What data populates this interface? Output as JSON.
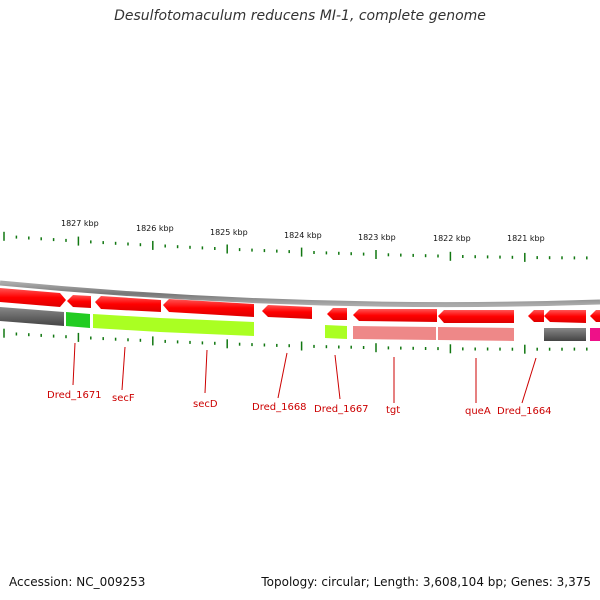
{
  "title": "Desulfotomaculum reducens MI-1, complete genome",
  "footer": {
    "accession": "Accession: NC_009253",
    "topology": "Topology: circular; Length: 3,608,104 bp; Genes: 3,375"
  },
  "scale_labels": [
    "1827 kbp",
    "1826 kbp",
    "1825 kbp",
    "1824 kbp",
    "1823 kbp",
    "1822 kbp",
    "1821 kbp"
  ],
  "gene_labels": [
    "Dred_1671",
    "secF",
    "secD",
    "Dred_1668",
    "Dred_1667",
    "tgt",
    "queA",
    "Dred_1664"
  ],
  "colors": {
    "forward_strand": "#ff0000",
    "backbone": "#888888",
    "cog_dark": "#555555",
    "cog_green": "#22cc22",
    "cog_lime": "#aaff22",
    "cog_pink": "#ee8888",
    "cog_magenta": "#ee1188",
    "tick": "#117711",
    "label": "#cc0000"
  }
}
